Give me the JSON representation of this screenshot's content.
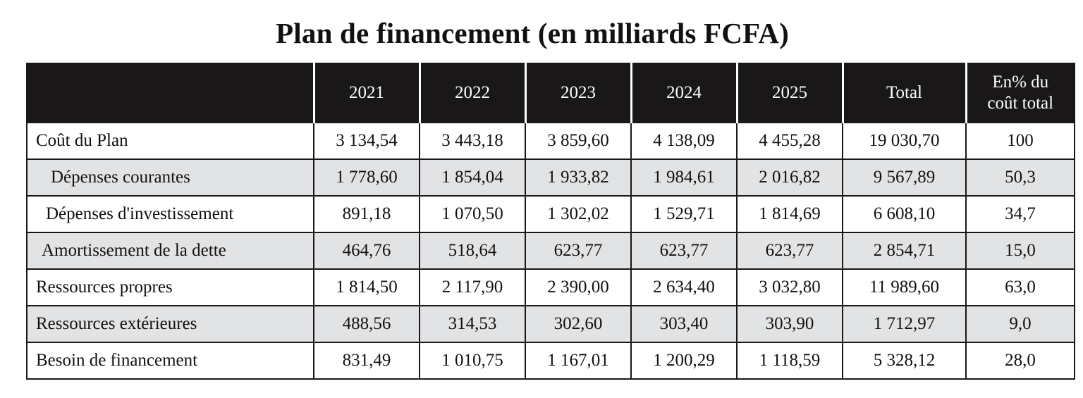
{
  "title": "Plan de financement (en milliards FCFA)",
  "chart_data": {
    "type": "table",
    "title": "Plan de financement (en milliards FCFA)",
    "columns": [
      "",
      "2021",
      "2022",
      "2023",
      "2024",
      "2025",
      "Total",
      "En% du coût total"
    ],
    "header": {
      "label": "",
      "y2021": "2021",
      "y2022": "2022",
      "y2023": "2023",
      "y2024": "2024",
      "y2025": "2025",
      "total": "Total",
      "pct_line1": "En% du",
      "pct_line2": "coût total"
    },
    "rows": [
      {
        "label": "Coût du Plan",
        "y2021": "3 134,54",
        "y2022": "3 443,18",
        "y2023": "3 859,60",
        "y2024": "4 138,09",
        "y2025": "4 455,28",
        "total": "19 030,70",
        "pct": "100"
      },
      {
        "label": "Dépenses courantes",
        "y2021": "1 778,60",
        "y2022": "1 854,04",
        "y2023": "1 933,82",
        "y2024": "1 984,61",
        "y2025": "2 016,82",
        "total": "9 567,89",
        "pct": "50,3"
      },
      {
        "label": "Dépenses d'investissement",
        "y2021": "891,18",
        "y2022": "1 070,50",
        "y2023": "1 302,02",
        "y2024": "1 529,71",
        "y2025": "1 814,69",
        "total": "6 608,10",
        "pct": "34,7"
      },
      {
        "label": "Amortissement de la dette",
        "y2021": "464,76",
        "y2022": "518,64",
        "y2023": "623,77",
        "y2024": "623,77",
        "y2025": "623,77",
        "total": "2 854,71",
        "pct": "15,0"
      },
      {
        "label": "Ressources propres",
        "y2021": "1 814,50",
        "y2022": "2 117,90",
        "y2023": "2 390,00",
        "y2024": "2 634,40",
        "y2025": "3 032,80",
        "total": "11 989,60",
        "pct": "63,0"
      },
      {
        "label": "Ressources extérieures",
        "y2021": "488,56",
        "y2022": "314,53",
        "y2023": "302,60",
        "y2024": "303,40",
        "y2025": "303,90",
        "total": "1 712,97",
        "pct": "9,0"
      },
      {
        "label": "Besoin de financement",
        "y2021": "831,49",
        "y2022": "1 010,75",
        "y2023": "1 167,01",
        "y2024": "1 200,29",
        "y2025": "1 118,59",
        "total": "5 328,12",
        "pct": "28,0"
      }
    ]
  },
  "colors": {
    "header_bg": "#1a1718",
    "header_text": "#ffffff",
    "shaded_row_bg": "#e2e3e5",
    "border": "#1a1718"
  }
}
